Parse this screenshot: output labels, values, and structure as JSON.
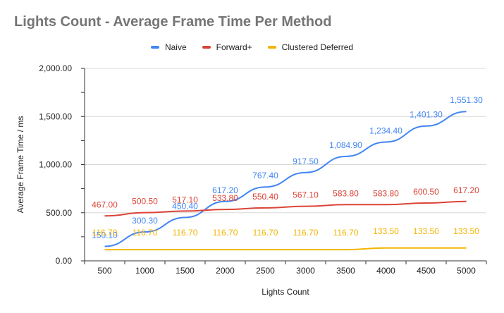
{
  "chart_data": {
    "type": "line",
    "title": "Lights Count - Average Frame Time Per Method",
    "xlabel": "Lights Count",
    "ylabel": "Average Frame Time / ms",
    "categories": [
      500,
      1000,
      1500,
      2000,
      2500,
      3000,
      3500,
      4000,
      4500,
      5000
    ],
    "ylim": [
      0,
      2000
    ],
    "y_ticks": [
      "0.00",
      "500.00",
      "1,000.00",
      "1,500.00",
      "2,000.00"
    ],
    "y_tick_values": [
      0,
      500,
      1000,
      1500,
      2000
    ],
    "grid": "horizontal",
    "legend_position": "top",
    "series": [
      {
        "name": "Naive",
        "color": "#4285f4",
        "values": [
          150.1,
          300.3,
          450.4,
          617.2,
          767.4,
          917.5,
          1084.9,
          1234.4,
          1401.3,
          1551.3
        ],
        "labels": [
          "150.10",
          "300.30",
          "450.40",
          "617.20",
          "767.40",
          "917.50",
          "1,084.90",
          "1,234.40",
          "1,401.30",
          "1,551.30"
        ]
      },
      {
        "name": "Forward+",
        "color": "#db4437",
        "values": [
          467.0,
          500.5,
          517.1,
          533.8,
          550.4,
          567.1,
          583.8,
          583.8,
          600.5,
          617.2
        ],
        "labels": [
          "467.00",
          "500.50",
          "517.10",
          "533.80",
          "550.40",
          "567.10",
          "583.80",
          "583.80",
          "600.50",
          "617.20"
        ]
      },
      {
        "name": "Clustered Deferred",
        "color": "#f4b400",
        "values": [
          116.7,
          116.7,
          116.7,
          116.7,
          116.7,
          116.7,
          116.7,
          133.5,
          133.5,
          133.5
        ],
        "labels": [
          "116.70",
          "116.70",
          "116.70",
          "116.70",
          "116.70",
          "116.70",
          "116.70",
          "133.50",
          "133.50",
          "133.50"
        ]
      }
    ]
  }
}
